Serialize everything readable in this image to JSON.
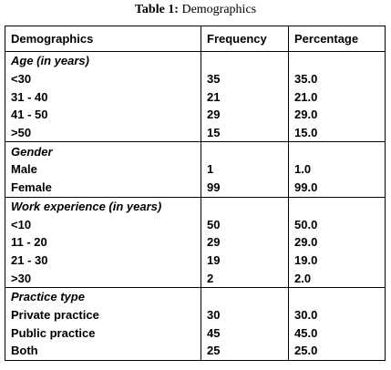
{
  "caption": {
    "label": "Table 1:",
    "text": "Demographics"
  },
  "table": {
    "header": [
      "Demographics",
      "Frequency",
      "Percentage"
    ],
    "sections": [
      {
        "title": "Age (in years)",
        "rows": [
          [
            "<30",
            "35",
            "35.0"
          ],
          [
            "31 - 40",
            "21",
            "21.0"
          ],
          [
            "41 - 50",
            "29",
            "29.0"
          ],
          [
            ">50",
            "15",
            "15.0"
          ]
        ]
      },
      {
        "title": "Gender",
        "rows": [
          [
            "Male",
            "1",
            "1.0"
          ],
          [
            "Female",
            "99",
            "99.0"
          ]
        ]
      },
      {
        "title": "Work experience (in years)",
        "rows": [
          [
            "<10",
            "50",
            "50.0"
          ],
          [
            "11 - 20",
            "29",
            "29.0"
          ],
          [
            "21 - 30",
            "19",
            "19.0"
          ],
          [
            ">30",
            "2",
            "2.0"
          ]
        ]
      },
      {
        "title": "Practice type",
        "rows": [
          [
            "Private practice",
            "30",
            "30.0"
          ],
          [
            "Public practice",
            "45",
            "45.0"
          ],
          [
            "Both",
            "25",
            "25.0"
          ]
        ]
      }
    ]
  }
}
